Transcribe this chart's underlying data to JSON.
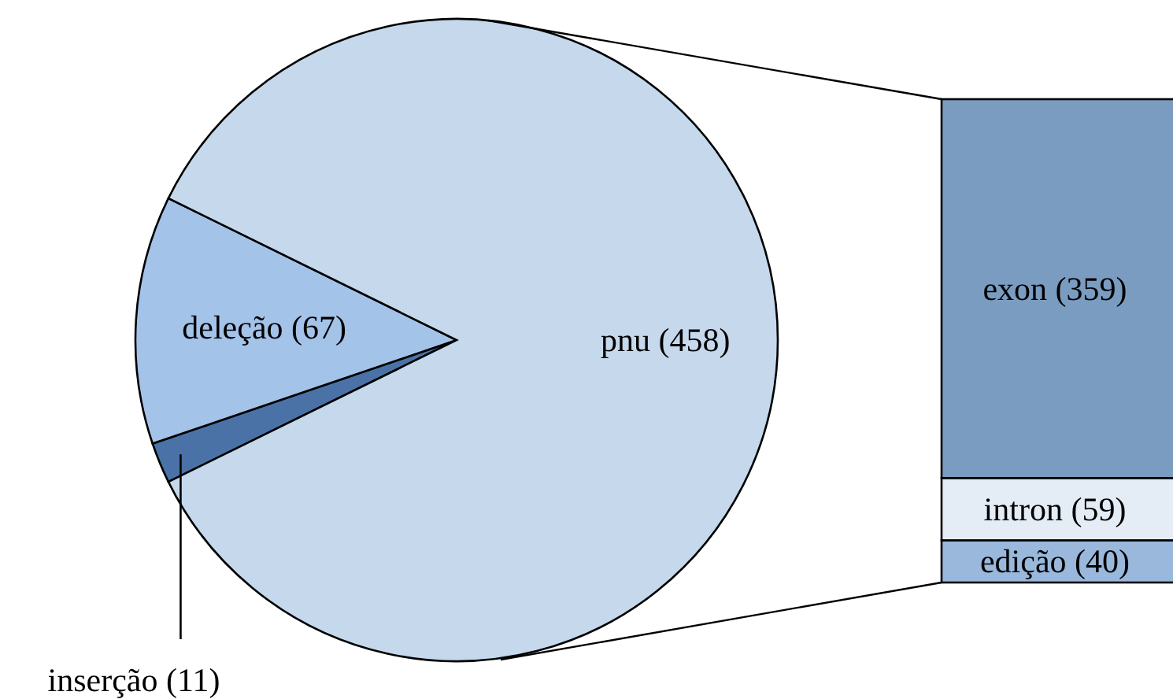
{
  "chart_data": [
    {
      "type": "pie",
      "categories": [
        "inserção",
        "deleção",
        "pnu"
      ],
      "values": [
        11,
        67,
        458
      ],
      "colors": [
        "#4a72a6",
        "#a4c3e8",
        "#c5d8ec"
      ],
      "value_labels": [
        "(11)",
        "(67)",
        "(458)"
      ]
    },
    {
      "type": "bar",
      "stacked": true,
      "categories": [
        null
      ],
      "series": [
        {
          "name": "edição",
          "color": "#9ab8dc",
          "values": [
            40
          ],
          "value_labels": [
            "(40)"
          ]
        },
        {
          "name": "intron",
          "color": "#e4ecf6",
          "values": [
            59
          ],
          "value_labels": [
            "(59)"
          ]
        },
        {
          "name": "exon",
          "color": "#7a9cc0",
          "values": [
            359
          ],
          "value_labels": [
            "(359)"
          ]
        }
      ]
    }
  ]
}
